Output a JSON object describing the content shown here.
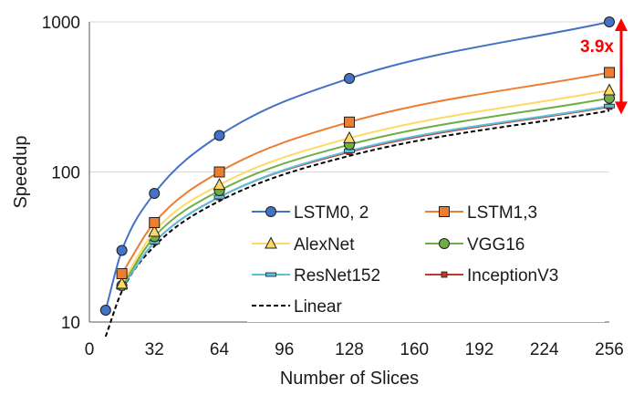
{
  "chart_data": {
    "type": "line",
    "title": "",
    "xlabel": "Number of Slices",
    "ylabel": "Speedup",
    "xlim": [
      0,
      256
    ],
    "ylim": [
      10,
      1000
    ],
    "yscale": "log",
    "xticks": [
      0,
      32,
      64,
      96,
      128,
      160,
      192,
      224,
      256
    ],
    "yticks": [
      10,
      100,
      1000
    ],
    "legend_position": "lower-right",
    "series": [
      {
        "name": "LSTM0, 2",
        "color": "#4472C4",
        "marker": "circle",
        "line_style": "solid",
        "points": [
          [
            8,
            12
          ],
          [
            16,
            30
          ],
          [
            32,
            72
          ],
          [
            64,
            175
          ],
          [
            128,
            420
          ],
          [
            256,
            1000
          ]
        ]
      },
      {
        "name": "LSTM1,3",
        "color": "#ED7D31",
        "marker": "square",
        "line_style": "solid",
        "points": [
          [
            16,
            21
          ],
          [
            32,
            46
          ],
          [
            64,
            100
          ],
          [
            128,
            215
          ],
          [
            256,
            460
          ]
        ]
      },
      {
        "name": "AlexNet",
        "color": "#FFD966",
        "marker": "triangle",
        "line_style": "solid",
        "points": [
          [
            16,
            18
          ],
          [
            32,
            40
          ],
          [
            64,
            82
          ],
          [
            128,
            168
          ],
          [
            256,
            350
          ]
        ]
      },
      {
        "name": "VGG16",
        "color": "#70AD47",
        "marker": "circle",
        "line_style": "solid",
        "points": [
          [
            16,
            17.5
          ],
          [
            32,
            37
          ],
          [
            64,
            75
          ],
          [
            128,
            152
          ],
          [
            256,
            310
          ]
        ]
      },
      {
        "name": "ResNet152",
        "color": "#5BC0DE",
        "marker": "dash",
        "line_style": "solid",
        "points": [
          [
            16,
            17
          ],
          [
            32,
            34
          ],
          [
            64,
            68
          ],
          [
            128,
            138
          ],
          [
            256,
            275
          ]
        ]
      },
      {
        "name": "InceptionV3",
        "color": "#C0392B",
        "marker": "small-square",
        "line_style": "solid",
        "points": [
          [
            16,
            17
          ],
          [
            32,
            34
          ],
          [
            64,
            68
          ],
          [
            128,
            136
          ],
          [
            256,
            272
          ]
        ]
      },
      {
        "name": "Linear",
        "color": "#000000",
        "marker": "none",
        "line_style": "dashed",
        "points": [
          [
            8,
            8
          ],
          [
            16,
            16
          ],
          [
            32,
            32
          ],
          [
            64,
            64
          ],
          [
            128,
            128
          ],
          [
            256,
            256
          ]
        ]
      }
    ],
    "annotation": {
      "text": "3.9x",
      "color": "#FF0000",
      "x": 256,
      "y_from": 256,
      "y_to": 1000
    }
  }
}
